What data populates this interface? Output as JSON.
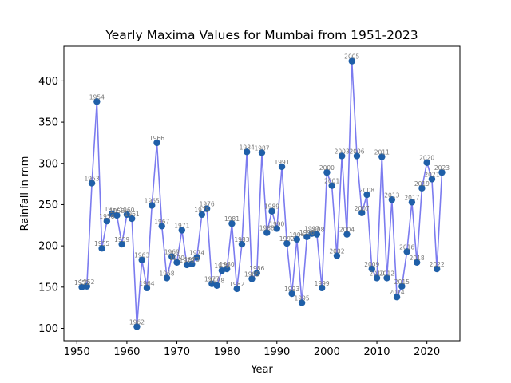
{
  "chart_data": {
    "type": "line",
    "title": "Yearly Maxima Values for Mumbai from 1951-2023",
    "xlabel": "Year",
    "ylabel": "Rainfall in mm",
    "xlim": [
      1947.4,
      2026.6
    ],
    "ylim": [
      85,
      442
    ],
    "xticks": [
      1950,
      1960,
      1970,
      1980,
      1990,
      2000,
      2010,
      2020
    ],
    "yticks": [
      100,
      150,
      200,
      250,
      300,
      350,
      400
    ],
    "grid": false,
    "line_color": "#7b7bef",
    "marker_color": "#1f5fa8",
    "label_color": "#777777",
    "series": [
      {
        "name": "Yearly Maxima",
        "x": [
          1951,
          1952,
          1953,
          1954,
          1955,
          1956,
          1957,
          1958,
          1959,
          1960,
          1961,
          1962,
          1963,
          1964,
          1965,
          1966,
          1967,
          1968,
          1969,
          1970,
          1971,
          1972,
          1973,
          1974,
          1975,
          1976,
          1977,
          1978,
          1979,
          1980,
          1981,
          1982,
          1983,
          1984,
          1985,
          1986,
          1987,
          1988,
          1989,
          1990,
          1991,
          1992,
          1993,
          1994,
          1995,
          1996,
          1997,
          1998,
          1999,
          2000,
          2001,
          2002,
          2003,
          2004,
          2005,
          2006,
          2007,
          2008,
          2009,
          2010,
          2011,
          2012,
          2013,
          2014,
          2015,
          2016,
          2017,
          2018,
          2019,
          2020,
          2021,
          2022,
          2023
        ],
        "values": [
          150,
          151,
          276,
          375,
          197,
          230,
          239,
          237,
          202,
          238,
          233,
          102,
          183,
          149,
          249,
          325,
          224,
          161,
          187,
          180,
          219,
          177,
          178,
          186,
          238,
          245,
          154,
          152,
          170,
          172,
          227,
          148,
          202,
          314,
          160,
          167,
          313,
          216,
          242,
          221,
          296,
          203,
          142,
          208,
          131,
          211,
          215,
          214,
          149,
          289,
          273,
          188,
          309,
          214,
          424,
          309,
          240,
          262,
          172,
          161,
          308,
          161,
          256,
          138,
          151,
          193,
          253,
          180,
          270,
          301,
          281,
          172,
          289
        ],
        "labels": [
          "1951",
          "1952",
          "1953",
          "1954",
          "1955",
          "1956",
          "1957",
          "1958",
          "1959",
          "1960",
          "1961",
          "1962",
          "1963",
          "1964",
          "1965",
          "1966",
          "1967",
          "1968",
          "1969",
          "1970",
          "1971",
          "1972",
          "1973",
          "1974",
          "1975",
          "1976",
          "1977",
          "1978",
          "1979",
          "1980",
          "1981",
          "1982",
          "1983",
          "1984",
          "1985",
          "1986",
          "1987",
          "1988",
          "1989",
          "1990",
          "1991",
          "1992",
          "1993",
          "1994",
          "1995",
          "1996",
          "1997",
          "1998",
          "1999",
          "2000",
          "2001",
          "2002",
          "2003",
          "2004",
          "2005",
          "2006",
          "2007",
          "2008",
          "2009",
          "2010",
          "2011",
          "2012",
          "2013",
          "2014",
          "2015",
          "2016",
          "2017",
          "2018",
          "2019",
          "2020",
          "2021",
          "2022",
          "2023"
        ]
      }
    ]
  }
}
